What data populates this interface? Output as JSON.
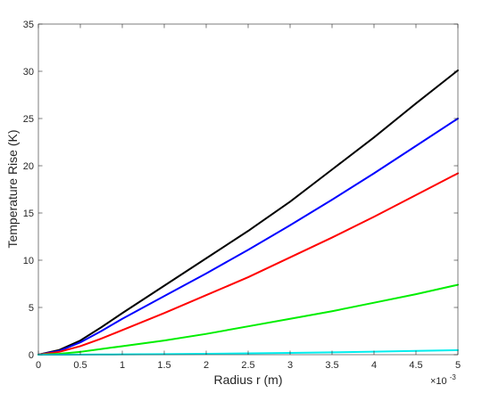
{
  "chart_data": {
    "type": "line",
    "title": "",
    "xlabel": "Radius r (m)",
    "ylabel": "Temperature Rise (K)",
    "x_exponent_label": {
      "base": "×10",
      "exp": "-3"
    },
    "xlim": [
      0,
      5
    ],
    "ylim": [
      0,
      35
    ],
    "x_ticks": [
      0,
      0.5,
      1,
      1.5,
      2,
      2.5,
      3,
      3.5,
      4,
      4.5,
      5
    ],
    "x_tick_labels": [
      "0",
      "0.5",
      "1",
      "1.5",
      "2",
      "2.5",
      "3",
      "3.5",
      "4",
      "4.5",
      "5"
    ],
    "y_ticks": [
      0,
      5,
      10,
      15,
      20,
      25,
      30,
      35
    ],
    "y_tick_labels": [
      "0",
      "5",
      "10",
      "15",
      "20",
      "25",
      "30",
      "35"
    ],
    "grid": false,
    "box": true,
    "x": [
      0,
      0.25,
      0.5,
      0.75,
      1,
      1.5,
      2,
      2.5,
      3,
      3.5,
      4,
      4.5,
      5
    ],
    "series": [
      {
        "color": "#000000",
        "values": [
          0,
          0.5,
          1.5,
          2.9,
          4.4,
          7.3,
          10.2,
          13.1,
          16.2,
          19.6,
          23.0,
          26.6,
          30.1
        ]
      },
      {
        "color": "#0000ff",
        "values": [
          0,
          0.4,
          1.3,
          2.5,
          3.8,
          6.2,
          8.6,
          11.1,
          13.7,
          16.4,
          19.2,
          22.1,
          25.0
        ]
      },
      {
        "color": "#ff0000",
        "values": [
          0,
          0.3,
          0.9,
          1.7,
          2.6,
          4.4,
          6.3,
          8.2,
          10.3,
          12.4,
          14.6,
          16.9,
          19.2
        ]
      },
      {
        "color": "#00ee00",
        "values": [
          0,
          0.1,
          0.3,
          0.6,
          0.9,
          1.5,
          2.2,
          3.0,
          3.8,
          4.6,
          5.5,
          6.4,
          7.4
        ]
      },
      {
        "color": "#00eeee",
        "values": [
          0,
          0.003,
          0.01,
          0.02,
          0.03,
          0.06,
          0.1,
          0.14,
          0.19,
          0.25,
          0.32,
          0.4,
          0.48
        ]
      }
    ]
  }
}
